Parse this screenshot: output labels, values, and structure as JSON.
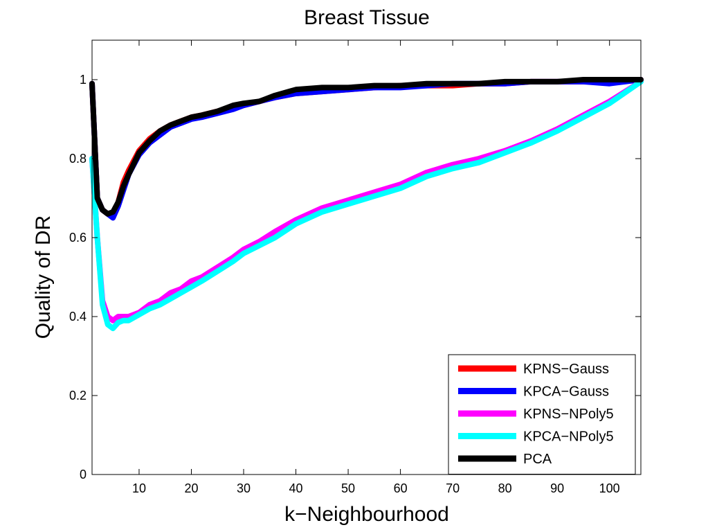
{
  "chart_data": {
    "type": "line",
    "title": "Breast Tissue",
    "xlabel": "k−Neighbourhood",
    "ylabel": "Quality of DR",
    "xlim": [
      1,
      106
    ],
    "ylim": [
      0,
      1.1
    ],
    "xticks": [
      10,
      20,
      30,
      40,
      50,
      60,
      70,
      80,
      90,
      100
    ],
    "xtick_labels": [
      "10",
      "20",
      "30",
      "40",
      "50",
      "60",
      "70",
      "80",
      "90",
      "100"
    ],
    "yticks": [
      0,
      0.2,
      0.4,
      0.6,
      0.8,
      1
    ],
    "ytick_labels": [
      "0",
      "0.2",
      "0.4",
      "0.6",
      "0.8",
      "1"
    ],
    "grid": false,
    "legend_position": "bottom-right",
    "series": [
      {
        "name": "KPNS−Gauss",
        "color": "#ff0000",
        "x": [
          1,
          2,
          3,
          4,
          5,
          6,
          7,
          8,
          10,
          12,
          14,
          16,
          18,
          20,
          22,
          25,
          28,
          30,
          33,
          36,
          40,
          45,
          50,
          55,
          60,
          65,
          70,
          75,
          80,
          85,
          90,
          95,
          100,
          106
        ],
        "y": [
          0.99,
          0.7,
          0.67,
          0.66,
          0.66,
          0.69,
          0.74,
          0.77,
          0.82,
          0.85,
          0.87,
          0.885,
          0.895,
          0.905,
          0.91,
          0.92,
          0.93,
          0.935,
          0.945,
          0.955,
          0.965,
          0.97,
          0.975,
          0.98,
          0.985,
          0.985,
          0.985,
          0.99,
          0.99,
          0.995,
          0.995,
          0.995,
          1.0,
          1.0
        ]
      },
      {
        "name": "KPCA−Gauss",
        "color": "#0000ff",
        "x": [
          1,
          2,
          3,
          4,
          5,
          6,
          7,
          8,
          10,
          12,
          14,
          16,
          18,
          20,
          22,
          25,
          28,
          30,
          33,
          36,
          40,
          45,
          50,
          55,
          60,
          65,
          70,
          75,
          80,
          85,
          90,
          95,
          100,
          106
        ],
        "y": [
          0.99,
          0.7,
          0.67,
          0.66,
          0.65,
          0.68,
          0.72,
          0.76,
          0.81,
          0.84,
          0.86,
          0.88,
          0.89,
          0.9,
          0.905,
          0.915,
          0.925,
          0.935,
          0.945,
          0.955,
          0.965,
          0.97,
          0.975,
          0.98,
          0.98,
          0.985,
          0.99,
          0.99,
          0.99,
          0.995,
          0.995,
          0.995,
          0.99,
          1.0
        ]
      },
      {
        "name": "KPNS−NPoly5",
        "color": "#ff00ff",
        "x": [
          1,
          2,
          3,
          4,
          5,
          6,
          7,
          8,
          10,
          12,
          14,
          16,
          18,
          20,
          22,
          25,
          28,
          30,
          33,
          36,
          40,
          45,
          50,
          55,
          60,
          65,
          70,
          75,
          80,
          85,
          90,
          95,
          100,
          106
        ],
        "y": [
          0.8,
          0.6,
          0.44,
          0.4,
          0.39,
          0.4,
          0.4,
          0.4,
          0.41,
          0.43,
          0.44,
          0.46,
          0.47,
          0.49,
          0.5,
          0.525,
          0.55,
          0.57,
          0.59,
          0.615,
          0.645,
          0.675,
          0.695,
          0.715,
          0.735,
          0.765,
          0.785,
          0.8,
          0.82,
          0.845,
          0.875,
          0.91,
          0.945,
          0.995
        ]
      },
      {
        "name": "KPCA−NPoly5",
        "color": "#00ffff",
        "x": [
          1,
          2,
          3,
          4,
          5,
          6,
          7,
          8,
          10,
          12,
          14,
          16,
          18,
          20,
          22,
          25,
          28,
          30,
          33,
          36,
          40,
          45,
          50,
          55,
          60,
          65,
          70,
          75,
          80,
          85,
          90,
          95,
          100,
          106
        ],
        "y": [
          0.8,
          0.6,
          0.43,
          0.38,
          0.37,
          0.385,
          0.39,
          0.39,
          0.405,
          0.42,
          0.43,
          0.445,
          0.46,
          0.475,
          0.49,
          0.515,
          0.54,
          0.56,
          0.58,
          0.6,
          0.635,
          0.665,
          0.685,
          0.705,
          0.725,
          0.755,
          0.775,
          0.79,
          0.815,
          0.84,
          0.87,
          0.905,
          0.94,
          0.995
        ]
      },
      {
        "name": "PCA",
        "color": "#000000",
        "x": [
          1,
          2,
          3,
          4,
          5,
          6,
          7,
          8,
          10,
          12,
          14,
          16,
          18,
          20,
          22,
          25,
          28,
          30,
          33,
          36,
          40,
          45,
          50,
          55,
          60,
          65,
          70,
          75,
          80,
          85,
          90,
          95,
          100,
          106
        ],
        "y": [
          0.99,
          0.7,
          0.67,
          0.66,
          0.665,
          0.69,
          0.73,
          0.76,
          0.815,
          0.845,
          0.87,
          0.885,
          0.895,
          0.905,
          0.91,
          0.92,
          0.935,
          0.94,
          0.945,
          0.96,
          0.975,
          0.98,
          0.98,
          0.985,
          0.985,
          0.99,
          0.99,
          0.99,
          0.995,
          0.995,
          0.995,
          1.0,
          1.0,
          1.0
        ]
      }
    ]
  }
}
